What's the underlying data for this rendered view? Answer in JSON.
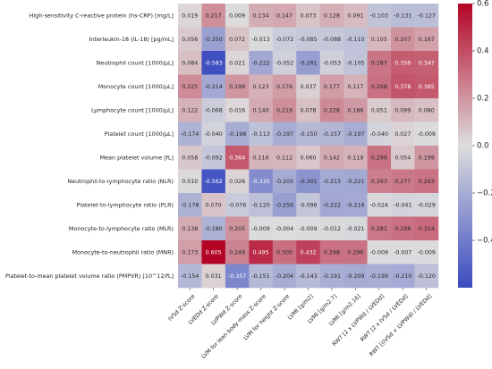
{
  "chart_data": {
    "type": "heatmap",
    "title": "",
    "xlabel": "",
    "ylabel": "",
    "rows": [
      "High-sensitivity C-reactive protein (hs-CRP) [mg/L]",
      "Interleukin-18 (IL-18) [pg/mL]",
      "Neutrophil count [1000/μL]",
      "Monocyte count [1000/μL]",
      "Lymphocyte count [1000/μL]",
      "Platelet count [1000/μL]",
      "Mean platelet volume [fL]",
      "Neutrophil-to-lymphocyte ratio (NLR)",
      "Platelet-to-lymphocyte ratio (PLR)",
      "Monocyte-to-lymphocyte ratio (MLR)",
      "Monocyte-to-neutrophil ratio (MNR)",
      "Platelet-to-mean platelet volume ratio (PMPVR) [10^12/fL]"
    ],
    "columns": [
      "IVSd Z-score",
      "LVEDd Z-score",
      "LVPWd Z-score",
      "LVM for lean body mass Z-score",
      "LVM for height Z-score",
      "LVMI [g/m2]",
      "LVMI [g/m2.7]",
      "LVMI [g/m2.16]",
      "RWT [2 x LVPWd / LVEDd]",
      "RWT [2 x IVSd / LVEDd]",
      "RWT [(IVSd + LVPWd) / LVEDd]"
    ],
    "values": [
      [
        0.019,
        0.217,
        0.009,
        0.134,
        0.147,
        0.073,
        0.128,
        0.091,
        -0.103,
        -0.131,
        -0.127
      ],
      [
        0.056,
        -0.25,
        0.072,
        -0.013,
        -0.072,
        -0.085,
        -0.088,
        -0.11,
        0.105,
        0.207,
        0.167
      ],
      [
        0.084,
        -0.583,
        0.021,
        -0.222,
        -0.052,
        -0.261,
        -0.053,
        -0.105,
        0.287,
        0.356,
        0.347
      ],
      [
        0.225,
        -0.214,
        0.199,
        0.123,
        0.176,
        0.037,
        0.177,
        0.117,
        0.298,
        0.378,
        0.365
      ],
      [
        0.122,
        -0.068,
        0.016,
        0.14,
        0.219,
        0.078,
        0.228,
        0.186,
        0.051,
        0.099,
        0.08
      ],
      [
        -0.174,
        -0.04,
        -0.198,
        -0.113,
        -0.197,
        -0.15,
        -0.157,
        -0.197,
        -0.04,
        0.027,
        -0.009
      ],
      [
        0.058,
        -0.092,
        0.364,
        0.116,
        0.112,
        0.06,
        0.142,
        0.119,
        0.296,
        0.054,
        0.199
      ],
      [
        0.01,
        -0.562,
        0.026,
        -0.335,
        -0.205,
        -0.301,
        -0.213,
        -0.221,
        0.263,
        0.277,
        0.293
      ],
      [
        -0.178,
        0.07,
        -0.076,
        -0.12,
        -0.256,
        -0.096,
        -0.222,
        -0.216,
        -0.024,
        -0.041,
        -0.029
      ],
      [
        0.138,
        -0.18,
        0.205,
        -0.009,
        -0.004,
        -0.009,
        -0.012,
        -0.021,
        0.281,
        0.298,
        0.314
      ],
      [
        0.173,
        0.605,
        0.249,
        0.495,
        0.305,
        0.432,
        0.298,
        0.296,
        -0.009,
        -0.007,
        -0.009
      ],
      [
        -0.154,
        0.031,
        -0.357,
        -0.151,
        -0.204,
        -0.143,
        -0.191,
        -0.209,
        -0.199,
        -0.21,
        -0.12
      ]
    ],
    "value_format": "3 decimals",
    "colormap": {
      "name": "diverging blue-white-red",
      "stops": [
        "#3b4cc0",
        "#dddddd",
        "#b40426"
      ]
    },
    "vmin": -0.6,
    "vmax": 0.6,
    "colorbar_ticks": [
      0.6,
      0.4,
      0.2,
      0.0,
      -0.2,
      -0.4
    ],
    "grid": false,
    "legend": "colorbar right"
  }
}
